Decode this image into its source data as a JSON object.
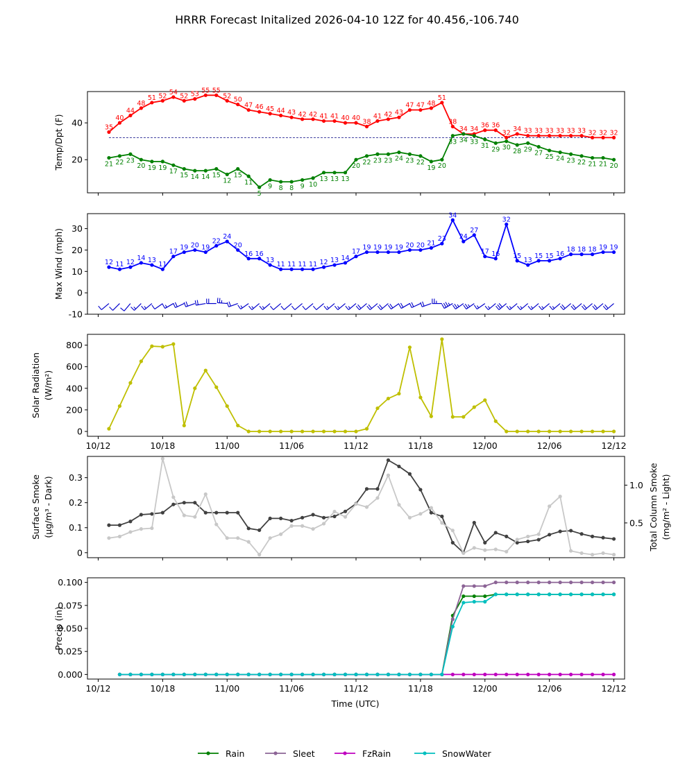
{
  "title": "HRRR Forecast Initalized 2026-04-10 12Z for 40.456,-106.740",
  "x_axis": {
    "label": "Time (UTC)",
    "tick_labels": [
      "10/12",
      "10/18",
      "11/00",
      "11/06",
      "11/12",
      "11/18",
      "12/00",
      "12/06",
      "12/12"
    ],
    "tick_hours": [
      0,
      6,
      12,
      18,
      24,
      30,
      36,
      42,
      48
    ],
    "range_hours": [
      -1,
      49
    ]
  },
  "chart_data": [
    {
      "type": "line",
      "panel": "temp",
      "ylabel": "Temp/Dpt (F)",
      "ylim": [
        2,
        57
      ],
      "yticks": [
        20,
        40
      ],
      "x_hours": [
        1,
        2,
        3,
        4,
        5,
        6,
        7,
        8,
        9,
        10,
        11,
        12,
        13,
        14,
        15,
        16,
        17,
        18,
        19,
        20,
        21,
        22,
        23,
        24,
        25,
        26,
        27,
        28,
        29,
        30,
        31,
        32,
        33,
        34,
        35,
        36,
        37,
        38,
        39,
        40,
        41,
        42,
        43,
        44,
        45,
        46,
        47,
        48
      ],
      "reference_line": 32,
      "series": [
        {
          "name": "Temp",
          "color": "#ff0000",
          "values": [
            35,
            40,
            44,
            48,
            51,
            52,
            54,
            52,
            53,
            55,
            55,
            52,
            50,
            47,
            46,
            45,
            44,
            43,
            42,
            42,
            41,
            41,
            40,
            40,
            38,
            41,
            42,
            43,
            47,
            47,
            48,
            51,
            38,
            34,
            34,
            36,
            36,
            32,
            34,
            33,
            33,
            33,
            33,
            33,
            33,
            32,
            32,
            32
          ]
        },
        {
          "name": "Dewpoint",
          "color": "#008000",
          "values": [
            21,
            22,
            23,
            20,
            19,
            19,
            17,
            15,
            14,
            14,
            15,
            12,
            15,
            11,
            5,
            9,
            8,
            8,
            9,
            10,
            13,
            13,
            13,
            20,
            22,
            23,
            23,
            24,
            23,
            22,
            19,
            20,
            33,
            34,
            33,
            31,
            29,
            30,
            28,
            29,
            27,
            25,
            24,
            23,
            22,
            21,
            21,
            20
          ]
        }
      ]
    },
    {
      "type": "line",
      "panel": "wind",
      "ylabel": "Max Wind (mph)",
      "ylim": [
        -10,
        37
      ],
      "yticks": [
        -10,
        0,
        10,
        20,
        30
      ],
      "x_hours": [
        1,
        2,
        3,
        4,
        5,
        6,
        7,
        8,
        9,
        10,
        11,
        12,
        13,
        14,
        15,
        16,
        17,
        18,
        19,
        20,
        21,
        22,
        23,
        24,
        25,
        26,
        27,
        28,
        29,
        30,
        31,
        32,
        33,
        34,
        35,
        36,
        37,
        38,
        39,
        40,
        41,
        42,
        43,
        44,
        45,
        46,
        47,
        48
      ],
      "series": [
        {
          "name": "Max Wind",
          "color": "#0000ff",
          "values": [
            12,
            11,
            12,
            14,
            13,
            11,
            17,
            19,
            20,
            19,
            22,
            24,
            20,
            16,
            16,
            13,
            11,
            11,
            11,
            11,
            12,
            13,
            14,
            17,
            19,
            19,
            19,
            19,
            20,
            20,
            21,
            23,
            34,
            24,
            27,
            17,
            16,
            32,
            15,
            13,
            15,
            15,
            16,
            18,
            18,
            18,
            19,
            19
          ]
        }
      ],
      "barb_directions_deg": [
        230,
        225,
        220,
        225,
        230,
        235,
        240,
        245,
        250,
        260,
        270,
        275,
        250,
        235,
        230,
        230,
        230,
        230,
        230,
        230,
        230,
        230,
        230,
        230,
        230,
        230,
        230,
        235,
        240,
        245,
        250,
        270,
        240,
        235,
        235,
        235,
        230,
        230,
        230,
        230,
        230,
        230,
        230,
        230,
        230,
        230,
        230,
        230
      ]
    },
    {
      "type": "line",
      "panel": "solar",
      "ylabel_lines": [
        "Solar Radiation",
        "(W/m²)"
      ],
      "ylim": [
        -45,
        900
      ],
      "yticks": [
        0,
        200,
        400,
        600,
        800
      ],
      "x_hours": [
        1,
        2,
        3,
        4,
        5,
        6,
        7,
        8,
        9,
        10,
        11,
        12,
        13,
        14,
        15,
        16,
        17,
        18,
        19,
        20,
        21,
        22,
        23,
        24,
        25,
        26,
        27,
        28,
        29,
        30,
        31,
        32,
        33,
        34,
        35,
        36,
        37,
        38,
        39,
        40,
        41,
        42,
        43,
        44,
        45,
        46,
        47,
        48
      ],
      "series": [
        {
          "name": "Solar Radiation",
          "color": "#bfbf00",
          "values": [
            25,
            235,
            450,
            650,
            790,
            785,
            810,
            55,
            400,
            565,
            410,
            235,
            55,
            0,
            0,
            0,
            0,
            0,
            0,
            0,
            0,
            0,
            0,
            0,
            25,
            215,
            305,
            350,
            780,
            315,
            140,
            855,
            135,
            135,
            225,
            290,
            95,
            0,
            0,
            0,
            0,
            0,
            0,
            0,
            0,
            0,
            0,
            0
          ]
        }
      ]
    },
    {
      "type": "line",
      "panel": "smoke",
      "ylabel_lines": [
        "Surface Smoke",
        "(μg/m³ - Dark)"
      ],
      "ylabel_right_lines": [
        "Total Column Smoke",
        "(mg/m² - Light)"
      ],
      "ylim": [
        -0.02,
        0.385
      ],
      "yticks": [
        0.0,
        0.1,
        0.2,
        0.3
      ],
      "ylim_right": [
        0.04,
        1.38
      ],
      "yticks_right": [
        0.5,
        1.0
      ],
      "x_hours": [
        1,
        2,
        3,
        4,
        5,
        6,
        7,
        8,
        9,
        10,
        11,
        12,
        13,
        14,
        15,
        16,
        17,
        18,
        19,
        20,
        21,
        22,
        23,
        24,
        25,
        26,
        27,
        28,
        29,
        30,
        31,
        32,
        33,
        34,
        35,
        36,
        37,
        38,
        39,
        40,
        41,
        42,
        43,
        44,
        45,
        46,
        47,
        48
      ],
      "series": [
        {
          "name": "Surface Smoke",
          "color": "#404040",
          "axis": "left",
          "values": [
            0.11,
            0.11,
            0.125,
            0.152,
            0.155,
            0.16,
            0.193,
            0.2,
            0.2,
            0.16,
            0.16,
            0.16,
            0.16,
            0.097,
            0.09,
            0.137,
            0.137,
            0.128,
            0.14,
            0.152,
            0.14,
            0.145,
            0.165,
            0.196,
            0.255,
            0.255,
            0.37,
            0.345,
            0.315,
            0.252,
            0.16,
            0.145,
            0.04,
            0.0,
            0.12,
            0.04,
            0.08,
            0.065,
            0.04,
            0.045,
            0.052,
            0.072,
            0.085,
            0.088,
            0.075,
            0.065,
            0.06,
            0.055
          ]
        },
        {
          "name": "Total Column Smoke",
          "color": "#c8c8c8",
          "axis": "right",
          "values": [
            0.3,
            0.32,
            0.38,
            0.42,
            0.43,
            1.35,
            0.84,
            0.6,
            0.58,
            0.88,
            0.48,
            0.3,
            0.3,
            0.25,
            0.08,
            0.3,
            0.35,
            0.46,
            0.46,
            0.42,
            0.49,
            0.65,
            0.58,
            0.75,
            0.71,
            0.83,
            1.13,
            0.74,
            0.57,
            0.62,
            0.7,
            0.5,
            0.4,
            0.1,
            0.17,
            0.14,
            0.15,
            0.12,
            0.28,
            0.32,
            0.35,
            0.72,
            0.85,
            0.13,
            0.1,
            0.08,
            0.1,
            0.08
          ]
        }
      ]
    },
    {
      "type": "line",
      "panel": "precip",
      "ylabel": "Precip (in)",
      "ylim": [
        -0.005,
        0.105
      ],
      "yticks": [
        0.0,
        0.025,
        0.05,
        0.075,
        0.1
      ],
      "ytick_labels": [
        "0.000",
        "0.025",
        "0.050",
        "0.075",
        "0.100"
      ],
      "x_hours": [
        2,
        3,
        4,
        5,
        6,
        7,
        8,
        9,
        10,
        11,
        12,
        13,
        14,
        15,
        16,
        17,
        18,
        19,
        20,
        21,
        22,
        23,
        24,
        25,
        26,
        27,
        28,
        29,
        30,
        31,
        32,
        33,
        34,
        35,
        36,
        37,
        38,
        39,
        40,
        41,
        42,
        43,
        44,
        45,
        46,
        47,
        48
      ],
      "series": [
        {
          "name": "Rain",
          "color": "#008000",
          "values": [
            0,
            0,
            0,
            0,
            0,
            0,
            0,
            0,
            0,
            0,
            0,
            0,
            0,
            0,
            0,
            0,
            0,
            0,
            0,
            0,
            0,
            0,
            0,
            0,
            0,
            0,
            0,
            0,
            0,
            0,
            0,
            0.064,
            0.085,
            0.085,
            0.085,
            0.087,
            0.087,
            0.087,
            0.087,
            0.087,
            0.087,
            0.087,
            0.087,
            0.087,
            0.087,
            0.087,
            0.087
          ]
        },
        {
          "name": "Sleet",
          "color": "#8c6496",
          "values": [
            0,
            0,
            0,
            0,
            0,
            0,
            0,
            0,
            0,
            0,
            0,
            0,
            0,
            0,
            0,
            0,
            0,
            0,
            0,
            0,
            0,
            0,
            0,
            0,
            0,
            0,
            0,
            0,
            0,
            0,
            0,
            0.06,
            0.096,
            0.096,
            0.096,
            0.1,
            0.1,
            0.1,
            0.1,
            0.1,
            0.1,
            0.1,
            0.1,
            0.1,
            0.1,
            0.1,
            0.1
          ]
        },
        {
          "name": "FzRain",
          "color": "#bf00bf",
          "values": [
            0,
            0,
            0,
            0,
            0,
            0,
            0,
            0,
            0,
            0,
            0,
            0,
            0,
            0,
            0,
            0,
            0,
            0,
            0,
            0,
            0,
            0,
            0,
            0,
            0,
            0,
            0,
            0,
            0,
            0,
            0,
            0,
            0,
            0,
            0,
            0,
            0,
            0,
            0,
            0,
            0,
            0,
            0,
            0,
            0,
            0,
            0
          ]
        },
        {
          "name": "SnowWater",
          "color": "#00bfbf",
          "values": [
            0,
            0,
            0,
            0,
            0,
            0,
            0,
            0,
            0,
            0,
            0,
            0,
            0,
            0,
            0,
            0,
            0,
            0,
            0,
            0,
            0,
            0,
            0,
            0,
            0,
            0,
            0,
            0,
            0,
            0,
            0,
            0.052,
            0.078,
            0.079,
            0.079,
            0.087,
            0.087,
            0.087,
            0.087,
            0.087,
            0.087,
            0.087,
            0.087,
            0.087,
            0.087,
            0.087,
            0.087
          ]
        }
      ]
    }
  ],
  "legend": [
    {
      "label": "Rain",
      "color": "#008000"
    },
    {
      "label": "Sleet",
      "color": "#8c6496"
    },
    {
      "label": "FzRain",
      "color": "#bf00bf"
    },
    {
      "label": "SnowWater",
      "color": "#00bfbf"
    }
  ]
}
